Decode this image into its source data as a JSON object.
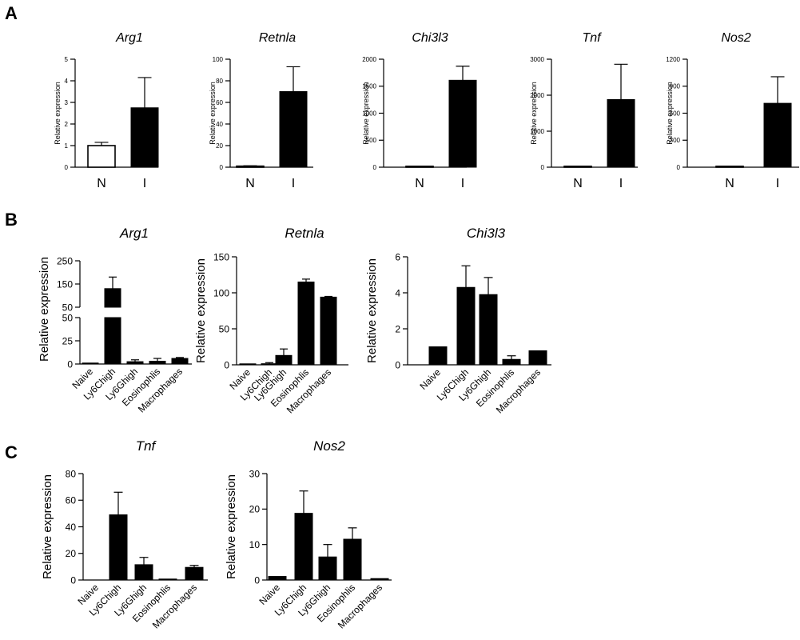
{
  "panel_labels": [
    "A",
    "B",
    "C"
  ],
  "ylabel": "Relative expression",
  "chart_data": [
    {
      "panel": "A",
      "type": "bar",
      "title": "Arg1",
      "categories": [
        "N",
        "I"
      ],
      "values": [
        1.0,
        2.75
      ],
      "errors": [
        0.15,
        1.4
      ],
      "fills": [
        "#ffffff",
        "#000000"
      ],
      "ylim": [
        0,
        5
      ],
      "yticks": [
        0,
        1,
        2,
        3,
        4,
        5
      ],
      "ylabel": "Relative expression"
    },
    {
      "panel": "A",
      "type": "bar",
      "title": "Retnla",
      "categories": [
        "N",
        "I"
      ],
      "values": [
        1.0,
        70
      ],
      "errors": [
        0.3,
        23
      ],
      "fills": [
        "#ffffff",
        "#000000"
      ],
      "ylim": [
        0,
        100
      ],
      "yticks": [
        0,
        20,
        40,
        60,
        80,
        100
      ],
      "ylabel": "Relative expression"
    },
    {
      "panel": "A",
      "type": "bar",
      "title": "Chi3l3",
      "categories": [
        "N",
        "I"
      ],
      "values": [
        1.0,
        1610
      ],
      "errors": [
        0,
        260
      ],
      "fills": [
        "#ffffff",
        "#000000"
      ],
      "ylim": [
        0,
        2000
      ],
      "yticks": [
        0,
        500,
        1000,
        1500,
        2000
      ],
      "ylabel": "Relative expression"
    },
    {
      "panel": "A",
      "type": "bar",
      "title": "Tnf",
      "categories": [
        "N",
        "I"
      ],
      "values": [
        1.0,
        1880
      ],
      "errors": [
        0,
        980
      ],
      "fills": [
        "#ffffff",
        "#000000"
      ],
      "ylim": [
        0,
        3000
      ],
      "yticks": [
        0,
        1000,
        2000,
        3000
      ],
      "ylabel": "Relative expression"
    },
    {
      "panel": "A",
      "type": "bar",
      "title": "Nos2",
      "categories": [
        "N",
        "I"
      ],
      "values": [
        1.0,
        710
      ],
      "errors": [
        0,
        295
      ],
      "fills": [
        "#ffffff",
        "#000000"
      ],
      "ylim": [
        0,
        1200
      ],
      "yticks": [
        0,
        300,
        600,
        900,
        1200
      ],
      "ylabel": "Relative expression"
    },
    {
      "panel": "B",
      "type": "bar",
      "title": "Arg1",
      "categories": [
        "Naive",
        "Ly6Chigh",
        "Ly6Ghigh",
        "Eosinophlis",
        "Macrophages"
      ],
      "values": [
        1,
        130,
        2.5,
        3,
        6
      ],
      "errors": [
        0,
        50,
        2,
        3,
        1
      ],
      "ylim": [
        0,
        250
      ],
      "axis_break": [
        50,
        50
      ],
      "yticks": [
        0,
        25,
        50,
        150,
        250
      ],
      "ylabel": "Relative expression"
    },
    {
      "panel": "B",
      "type": "bar",
      "title": "Retnla",
      "categories": [
        "Naive",
        "Ly6Chigh",
        "Ly6Ghigh",
        "Eosinophlis",
        "Macrophages"
      ],
      "values": [
        0.5,
        1.5,
        13,
        115,
        94
      ],
      "errors": [
        0,
        1.5,
        9,
        4,
        1
      ],
      "ylim": [
        0,
        150
      ],
      "yticks": [
        0,
        50,
        100,
        150
      ],
      "ylabel": "Relative expression"
    },
    {
      "panel": "B",
      "type": "bar",
      "title": "Chi3l3",
      "categories": [
        "Naive",
        "Ly6Chigh",
        "Ly6Ghigh",
        "Eosinophlis",
        "Macrophages"
      ],
      "values": [
        1.0,
        4.3,
        3.9,
        0.3,
        0.78
      ],
      "errors": [
        0,
        1.2,
        0.95,
        0.2,
        0
      ],
      "ylim": [
        0,
        6
      ],
      "yticks": [
        0,
        2,
        4,
        6
      ],
      "ylabel": "Relative expression"
    },
    {
      "panel": "C",
      "type": "bar",
      "title": "Tnf",
      "categories": [
        "Naive",
        "Ly6Chigh",
        "Ly6Ghigh",
        "Eosinophlis",
        "Macrophages"
      ],
      "values": [
        0,
        49,
        11.5,
        0.3,
        9.5
      ],
      "errors": [
        0,
        17,
        5.5,
        0,
        1.5
      ],
      "ylim": [
        0,
        80
      ],
      "yticks": [
        0,
        20,
        40,
        60,
        80
      ],
      "ylabel": "Relative expression"
    },
    {
      "panel": "C",
      "type": "bar",
      "title": "Nos2",
      "categories": [
        "Naive",
        "Ly6Chigh",
        "Ly6Ghigh",
        "Eosinophlis",
        "Macrophages"
      ],
      "values": [
        1.0,
        18.8,
        6.5,
        11.5,
        0.4
      ],
      "errors": [
        0,
        6.3,
        3.5,
        3.2,
        0
      ],
      "ylim": [
        0,
        30
      ],
      "yticks": [
        0,
        10,
        20,
        30
      ],
      "ylabel": "Relative expression"
    }
  ]
}
